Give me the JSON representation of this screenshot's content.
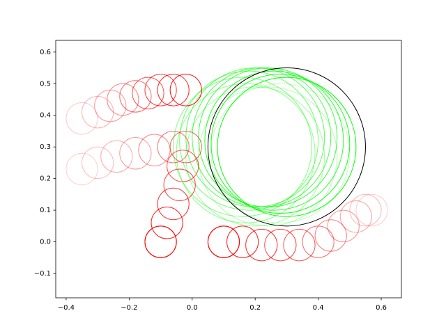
{
  "chart_data": {
    "type": "circles",
    "xlim": [
      -0.433,
      0.664
    ],
    "ylim": [
      -0.177,
      0.637
    ],
    "xticks": [
      {
        "value": -0.4,
        "label": "−0.4"
      },
      {
        "value": -0.2,
        "label": "−0.2"
      },
      {
        "value": 0,
        "label": "0.0"
      },
      0.2,
      0.4,
      0.6
    ],
    "yticks": [
      {
        "value": -0.1,
        "label": "−0.1"
      },
      {
        "value": 0,
        "label": "0.0"
      },
      0.1,
      0.2,
      0.3,
      0.4,
      0.5,
      0.6
    ],
    "trails": [
      {
        "color": "#00ff00",
        "x": [
          0.3,
          0.28,
          0.26,
          0.24,
          0.22,
          0.2,
          0.18,
          0.16,
          0.17,
          0.2,
          0.24,
          0.28,
          0.3
        ],
        "y": [
          0.3,
          0.31,
          0.32,
          0.33,
          0.33,
          0.33,
          0.32,
          0.3,
          0.28,
          0.27,
          0.27,
          0.28,
          0.3
        ],
        "r": [
          0.22,
          0.22,
          0.22,
          0.22,
          0.22,
          0.22,
          0.22,
          0.22,
          0.22,
          0.22,
          0.22,
          0.22,
          0.22
        ]
      },
      {
        "color": "#ff0000",
        "x": [
          -0.1,
          -0.08,
          -0.06,
          -0.04,
          -0.03,
          -0.02,
          -0.06,
          -0.12,
          -0.18,
          -0.24,
          -0.3,
          -0.35
        ],
        "y": [
          0,
          0.06,
          0.12,
          0.18,
          0.24,
          0.3,
          0.3,
          0.29,
          0.28,
          0.27,
          0.25,
          0.23
        ],
        "r": [
          0.05,
          0.05,
          0.05,
          0.05,
          0.05,
          0.05,
          0.05,
          0.05,
          0.05,
          0.05,
          0.05,
          0.05
        ]
      },
      {
        "color": "#ff0000",
        "x": [
          -0.02,
          -0.06,
          -0.1,
          -0.14,
          -0.18,
          -0.22,
          -0.26,
          -0.3,
          -0.35
        ],
        "y": [
          0.48,
          0.48,
          0.48,
          0.47,
          0.46,
          0.45,
          0.43,
          0.41,
          0.39
        ],
        "r": [
          0.05,
          0.05,
          0.05,
          0.05,
          0.05,
          0.05,
          0.05,
          0.05,
          0.05
        ]
      },
      {
        "color": "#ff0000",
        "x": [
          0.1,
          0.16,
          0.22,
          0.28,
          0.34,
          0.4,
          0.44,
          0.48,
          0.52,
          0.55,
          0.57
        ],
        "y": [
          0,
          0,
          -0.01,
          -0.01,
          -0.01,
          0,
          0.02,
          0.05,
          0.08,
          0.1,
          0.1
        ],
        "r": [
          0.05,
          0.05,
          0.05,
          0.05,
          0.05,
          0.05,
          0.05,
          0.05,
          0.05,
          0.05,
          0.05
        ]
      }
    ],
    "circles": [
      {
        "color": "#000000",
        "x": 0.3,
        "y": 0.3,
        "r": 0.25
      },
      {
        "color": "#ff0000",
        "x": -0.1,
        "y": 0,
        "r": 0.05
      },
      {
        "color": "#ff0000",
        "x": 0.1,
        "y": 0,
        "r": 0.05
      }
    ]
  }
}
